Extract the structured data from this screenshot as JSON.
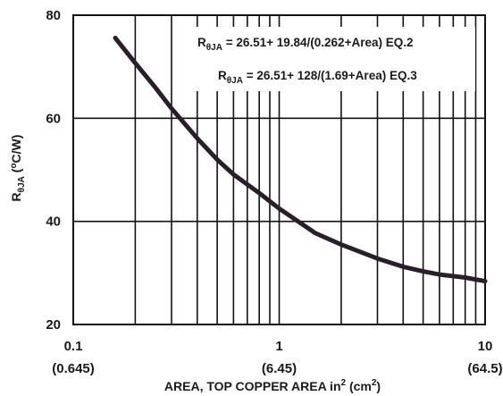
{
  "chart_data": {
    "type": "line",
    "xscale": "log",
    "xlim": [
      0.1,
      10
    ],
    "ylim": [
      20,
      80
    ],
    "grid": true,
    "x_ticks": [
      "0.1",
      "1",
      "10"
    ],
    "x_ticks_cm": [
      "(0.645)",
      "(6.45)",
      "(64.5)"
    ],
    "y_ticks": [
      "20",
      "40",
      "60",
      "80"
    ],
    "xlabel": {
      "main": "AREA, TOP COPPER AREA in",
      "sup1": "2",
      "mid": " (cm",
      "sup2": "2",
      "end": ")"
    },
    "ylabel": {
      "r": "R",
      "sub": "θJA",
      "mid": " (",
      "sup": "o",
      "end": "C/W)"
    },
    "annotations": [
      {
        "r": "R",
        "sub": "θJA",
        "text": " = 26.51+ 19.84/(0.262+Area) EQ.2"
      },
      {
        "r": "R",
        "sub": "θJA",
        "text": " = 26.51+ 128/(1.69+Area) EQ.3"
      }
    ],
    "series": [
      {
        "x": [
          0.16,
          0.2,
          0.25,
          0.3,
          0.4,
          0.5,
          0.6,
          0.8,
          1,
          1.5,
          2,
          3,
          4,
          5,
          6,
          8,
          10
        ],
        "y": [
          75.6,
          70.7,
          66.0,
          61.9,
          56.1,
          52.0,
          49.1,
          45.5,
          42.5,
          37.7,
          35.5,
          32.8,
          31.2,
          30.3,
          29.7,
          29.1,
          28.4
        ]
      }
    ],
    "line_color": "#2a1e2c"
  }
}
